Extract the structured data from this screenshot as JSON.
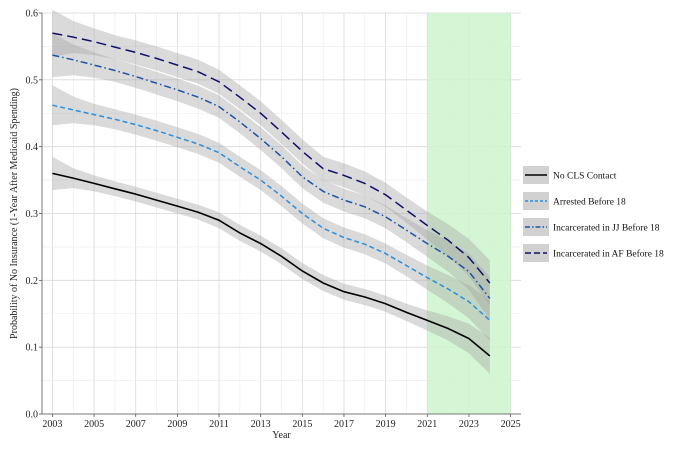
{
  "chart_data": {
    "type": "line",
    "xlabel": "Year",
    "ylabel": "Probability of No Insurance (1-Year After Medicaid Spending)",
    "xlim": [
      2002.5,
      2025.5
    ],
    "ylim": [
      0.0,
      0.6
    ],
    "x_ticks": [
      2003,
      2005,
      2007,
      2009,
      2011,
      2013,
      2015,
      2017,
      2019,
      2021,
      2023,
      2025
    ],
    "x_tick_labels": [
      "2003",
      "2005",
      "2007",
      "2009",
      "2011",
      "2013",
      "2015",
      "2017",
      "2019",
      "2021",
      "2023",
      "2025"
    ],
    "y_ticks": [
      0.0,
      0.1,
      0.2,
      0.3,
      0.4,
      0.5,
      0.6
    ],
    "y_tick_labels": [
      "0.0",
      "0.1",
      "0.2",
      "0.3",
      "0.4",
      "0.5",
      "0.6"
    ],
    "grid": true,
    "highlight": {
      "x_range": [
        2021,
        2025
      ],
      "color": "#ccf5cc"
    },
    "legend_position": "right",
    "x": [
      2003,
      2004,
      2005,
      2006,
      2007,
      2008,
      2009,
      2010,
      2011,
      2012,
      2013,
      2014,
      2015,
      2016,
      2017,
      2018,
      2019,
      2020,
      2021,
      2022,
      2023,
      2024
    ],
    "series": [
      {
        "name": "No CLS Contact",
        "color": "#000000",
        "dash": "solid",
        "values": [
          0.36,
          0.353,
          0.345,
          0.337,
          0.329,
          0.32,
          0.311,
          0.302,
          0.29,
          0.271,
          0.255,
          0.236,
          0.214,
          0.196,
          0.183,
          0.175,
          0.165,
          0.152,
          0.14,
          0.128,
          0.113,
          0.087
        ],
        "ci_width": [
          0.025,
          0.015,
          0.012,
          0.011,
          0.011,
          0.011,
          0.011,
          0.011,
          0.012,
          0.012,
          0.012,
          0.012,
          0.012,
          0.012,
          0.012,
          0.012,
          0.012,
          0.013,
          0.015,
          0.018,
          0.022,
          0.027
        ]
      },
      {
        "name": "Arrested Before 18",
        "color": "#2b8fe0",
        "dash": "dashed",
        "values": [
          0.462,
          0.455,
          0.448,
          0.441,
          0.433,
          0.424,
          0.414,
          0.404,
          0.391,
          0.37,
          0.35,
          0.326,
          0.3,
          0.278,
          0.264,
          0.254,
          0.24,
          0.222,
          0.204,
          0.187,
          0.168,
          0.14
        ],
        "ci_width": [
          0.03,
          0.02,
          0.016,
          0.015,
          0.015,
          0.015,
          0.015,
          0.015,
          0.015,
          0.015,
          0.015,
          0.015,
          0.015,
          0.015,
          0.015,
          0.015,
          0.015,
          0.016,
          0.018,
          0.021,
          0.025,
          0.03
        ]
      },
      {
        "name": "Incarcerated in JJ Before 18",
        "color": "#1a52a8",
        "dash": "dashdot",
        "values": [
          0.537,
          0.53,
          0.522,
          0.514,
          0.505,
          0.495,
          0.485,
          0.474,
          0.46,
          0.437,
          0.412,
          0.385,
          0.355,
          0.333,
          0.32,
          0.31,
          0.295,
          0.275,
          0.255,
          0.236,
          0.213,
          0.173
        ],
        "ci_width": [
          0.033,
          0.023,
          0.019,
          0.017,
          0.017,
          0.017,
          0.017,
          0.017,
          0.017,
          0.017,
          0.017,
          0.017,
          0.017,
          0.017,
          0.017,
          0.017,
          0.017,
          0.018,
          0.02,
          0.023,
          0.027,
          0.032
        ]
      },
      {
        "name": "Incarcerated in AF Before 18",
        "color": "#10106b",
        "dash": "longdash",
        "values": [
          0.57,
          0.564,
          0.557,
          0.549,
          0.541,
          0.532,
          0.522,
          0.512,
          0.497,
          0.474,
          0.45,
          0.422,
          0.393,
          0.367,
          0.357,
          0.345,
          0.328,
          0.305,
          0.282,
          0.26,
          0.234,
          0.196
        ],
        "ci_width": [
          0.035,
          0.024,
          0.02,
          0.018,
          0.018,
          0.018,
          0.018,
          0.018,
          0.018,
          0.018,
          0.018,
          0.018,
          0.018,
          0.018,
          0.018,
          0.018,
          0.018,
          0.019,
          0.021,
          0.024,
          0.028,
          0.034
        ]
      }
    ]
  }
}
